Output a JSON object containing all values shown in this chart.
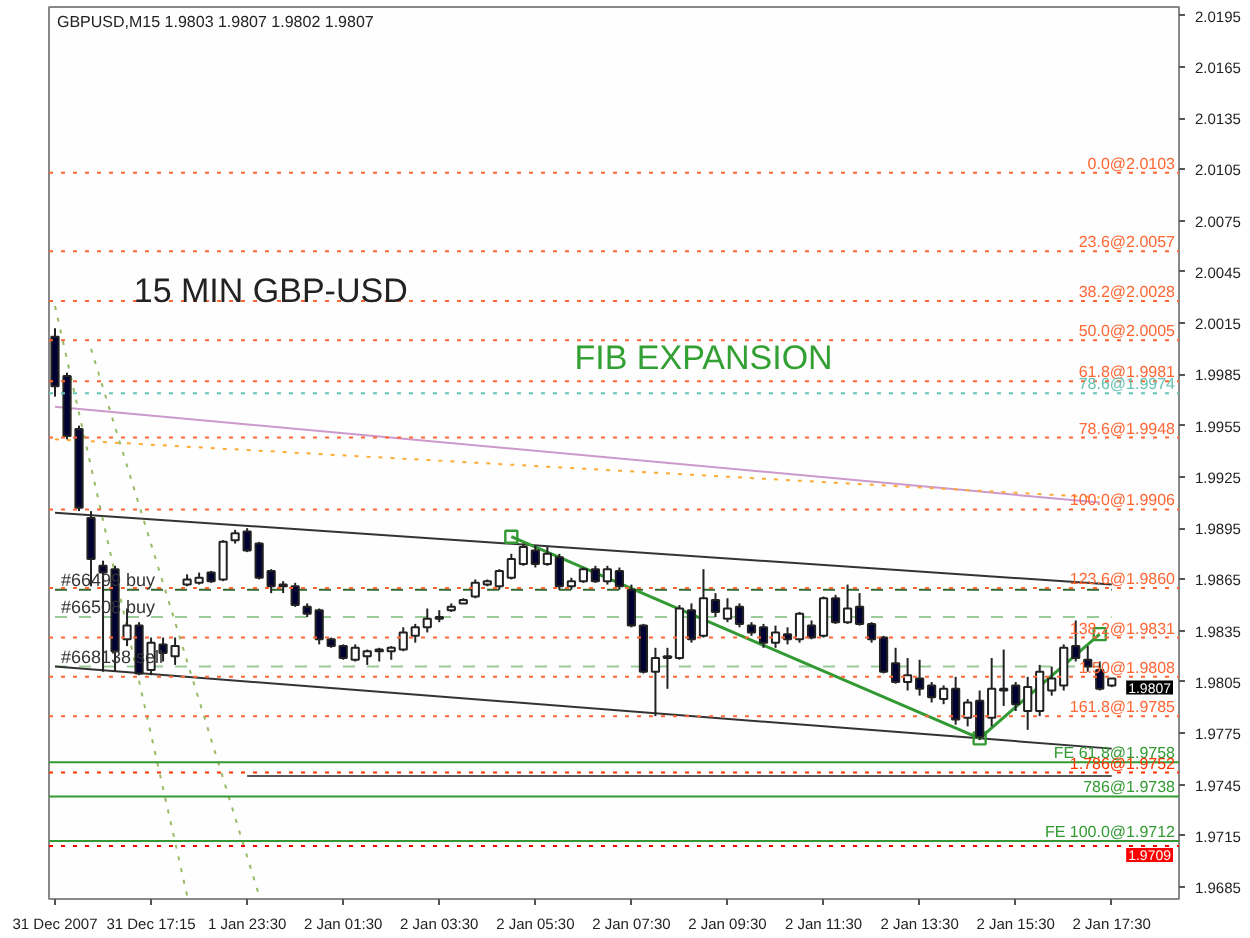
{
  "chart_data": {
    "type": "candlestick",
    "title": "GBPUSD,M15  1.9803 1.9807 1.9802 1.9807",
    "categories": [
      "31 Dec 2007",
      null,
      null,
      null,
      null,
      null,
      null,
      null,
      "31 Dec 17:15",
      null,
      null,
      null,
      null,
      null,
      null,
      null,
      "1 Jan 23:30",
      null,
      null,
      null,
      null,
      null,
      null,
      null,
      "2 Jan 01:30",
      null,
      null,
      null,
      null,
      null,
      null,
      null,
      "2 Jan 03:30",
      null,
      null,
      null,
      null,
      null,
      null,
      null,
      "2 Jan 05:30",
      null,
      null,
      null,
      null,
      null,
      null,
      null,
      "2 Jan 07:30",
      null,
      null,
      null,
      null,
      null,
      null,
      null,
      "2 Jan 09:30",
      null,
      null,
      null,
      null,
      null,
      null,
      null,
      "2 Jan 11:30",
      null,
      null,
      null,
      null,
      null,
      null,
      null,
      "2 Jan 13:30",
      null,
      null,
      null,
      null,
      null,
      null,
      null,
      "2 Jan 15:30",
      null,
      null,
      null,
      null,
      null,
      null,
      null,
      "2 Jan 17:30"
    ],
    "ohlc": [
      [
        2.0007,
        2.0012,
        1.9972,
        1.9978
      ],
      [
        1.9984,
        1.9986,
        1.9947,
        1.9949
      ],
      [
        1.9953,
        1.9955,
        1.9905,
        1.9907
      ],
      [
        1.9901,
        1.9905,
        1.9861,
        1.9877
      ],
      [
        1.9873,
        1.9876,
        1.9811,
        1.9869
      ],
      [
        1.9871,
        1.9873,
        1.9811,
        1.9823
      ],
      [
        1.983,
        1.9848,
        1.9826,
        1.9838
      ],
      [
        1.9838,
        1.984,
        1.9809,
        1.981
      ],
      [
        1.9812,
        1.9831,
        1.9809,
        1.9828
      ],
      [
        1.9827,
        1.9831,
        1.9817,
        1.9822
      ],
      [
        1.982,
        1.9831,
        1.9815,
        1.9826
      ],
      [
        1.9862,
        1.9868,
        1.9861,
        1.9865
      ],
      [
        1.9863,
        1.9869,
        1.9862,
        1.9866
      ],
      [
        1.9869,
        1.987,
        1.9863,
        1.9864
      ],
      [
        1.9865,
        1.9888,
        1.9864,
        1.9887
      ],
      [
        1.9888,
        1.9894,
        1.9886,
        1.9892
      ],
      [
        1.9893,
        1.9895,
        1.9881,
        1.9882
      ],
      [
        1.9886,
        1.9887,
        1.9865,
        1.9866
      ],
      [
        1.987,
        1.9871,
        1.9857,
        1.9861
      ],
      [
        1.9862,
        1.9864,
        1.9857,
        1.9861
      ],
      [
        1.9861,
        1.9863,
        1.9849,
        1.985
      ],
      [
        1.9849,
        1.9851,
        1.9843,
        1.9845
      ],
      [
        1.9847,
        1.9848,
        1.9827,
        1.983
      ],
      [
        1.983,
        1.9831,
        1.9825,
        1.9826
      ],
      [
        1.9826,
        1.9827,
        1.9818,
        1.9819
      ],
      [
        1.9818,
        1.9827,
        1.9817,
        1.9825
      ],
      [
        1.982,
        1.9824,
        1.9815,
        1.9823
      ],
      [
        1.9823,
        1.9825,
        1.9817,
        1.9824
      ],
      [
        1.9823,
        1.9826,
        1.9818,
        1.9825
      ],
      [
        1.9824,
        1.9837,
        1.9823,
        1.9834
      ],
      [
        1.9832,
        1.9839,
        1.9828,
        1.9837
      ],
      [
        1.9837,
        1.9848,
        1.9834,
        1.9842
      ],
      [
        1.9842,
        1.9847,
        1.984,
        1.9843
      ],
      [
        1.9847,
        1.9851,
        1.9846,
        1.9849
      ],
      [
        1.9851,
        1.9854,
        1.9851,
        1.9853
      ],
      [
        1.9855,
        1.9865,
        1.9854,
        1.9863
      ],
      [
        1.9862,
        1.9865,
        1.9861,
        1.9864
      ],
      [
        1.9861,
        1.9871,
        1.9859,
        1.987
      ],
      [
        1.9866,
        1.988,
        1.9865,
        1.9877
      ],
      [
        1.9874,
        1.9886,
        1.9873,
        1.9884
      ],
      [
        1.9882,
        1.9885,
        1.9872,
        1.9874
      ],
      [
        1.9874,
        1.9884,
        1.9873,
        1.988
      ],
      [
        1.9878,
        1.988,
        1.9859,
        1.9861
      ],
      [
        1.9861,
        1.9866,
        1.9859,
        1.9864
      ],
      [
        1.9864,
        1.9872,
        1.9863,
        1.9871
      ],
      [
        1.9871,
        1.9873,
        1.9863,
        1.9864
      ],
      [
        1.9864,
        1.9873,
        1.9862,
        1.9871
      ],
      [
        1.987,
        1.9872,
        1.9859,
        1.9861
      ],
      [
        1.9859,
        1.9862,
        1.9837,
        1.9838
      ],
      [
        1.9838,
        1.9839,
        1.981,
        1.9811
      ],
      [
        1.9811,
        1.9825,
        1.9785,
        1.9819
      ],
      [
        1.9819,
        1.9825,
        1.9801,
        1.982
      ],
      [
        1.9819,
        1.985,
        1.9818,
        1.9848
      ],
      [
        1.9847,
        1.9851,
        1.9828,
        1.983
      ],
      [
        1.9832,
        1.9871,
        1.9831,
        1.9854
      ],
      [
        1.9853,
        1.9857,
        1.9843,
        1.9846
      ],
      [
        1.9842,
        1.9854,
        1.984,
        1.9848
      ],
      [
        1.9849,
        1.9851,
        1.9837,
        1.9839
      ],
      [
        1.9838,
        1.984,
        1.9832,
        1.9834
      ],
      [
        1.9837,
        1.9839,
        1.9825,
        1.9828
      ],
      [
        1.9828,
        1.9838,
        1.9825,
        1.9834
      ],
      [
        1.9833,
        1.9837,
        1.9827,
        1.983
      ],
      [
        1.983,
        1.9846,
        1.9828,
        1.9845
      ],
      [
        1.9838,
        1.9841,
        1.983,
        1.9831
      ],
      [
        1.9832,
        1.9855,
        1.9831,
        1.9854
      ],
      [
        1.9854,
        1.9856,
        1.9839,
        1.984
      ],
      [
        1.984,
        1.9862,
        1.9839,
        1.9848
      ],
      [
        1.9849,
        1.9857,
        1.9838,
        1.9839
      ],
      [
        1.9839,
        1.984,
        1.9828,
        1.983
      ],
      [
        1.9831,
        1.9832,
        1.981,
        1.9811
      ],
      [
        1.9816,
        1.9825,
        1.9804,
        1.9805
      ],
      [
        1.9805,
        1.9819,
        1.98,
        1.9809
      ],
      [
        1.9807,
        1.9818,
        1.9797,
        1.9801
      ],
      [
        1.9803,
        1.9805,
        1.9793,
        1.9796
      ],
      [
        1.9795,
        1.9803,
        1.9792,
        1.9801
      ],
      [
        1.9801,
        1.9808,
        1.978,
        1.9783
      ],
      [
        1.9784,
        1.9795,
        1.9779,
        1.9793
      ],
      [
        1.9794,
        1.98,
        1.9771,
        1.9773
      ],
      [
        1.9784,
        1.9819,
        1.9779,
        1.9801
      ],
      [
        1.98,
        1.9824,
        1.9791,
        1.9801
      ],
      [
        1.9803,
        1.9805,
        1.9788,
        1.9792
      ],
      [
        1.9788,
        1.9808,
        1.9777,
        1.9802
      ],
      [
        1.9788,
        1.9815,
        1.9785,
        1.9811
      ],
      [
        1.98,
        1.9814,
        1.9797,
        1.9807
      ],
      [
        1.9803,
        1.9827,
        1.98,
        1.9825
      ],
      [
        1.9826,
        1.9841,
        1.9817,
        1.9819
      ],
      [
        1.9818,
        1.9826,
        1.9811,
        1.9814
      ],
      [
        1.9812,
        1.9817,
        1.98,
        1.9801
      ],
      [
        1.9803,
        1.9807,
        1.9802,
        1.9807
      ]
    ],
    "ylim": [
      1.9678,
      2.02
    ],
    "yticks": [
      2.0195,
      2.0165,
      2.0135,
      2.0105,
      2.0075,
      2.0045,
      2.0015,
      1.9985,
      1.9955,
      1.9925,
      1.9895,
      1.9865,
      1.9835,
      1.9805,
      1.9775,
      1.9745,
      1.9715,
      1.9685
    ],
    "ref_lines": [
      {
        "axis": "y",
        "value": 2.0103,
        "label": "0.0@2.0103",
        "color": "#ff6633",
        "line_style": "dotted"
      },
      {
        "axis": "y",
        "value": 2.0057,
        "label": "23.6@2.0057",
        "color": "#ff6633",
        "line_style": "dotted"
      },
      {
        "axis": "y",
        "value": 2.0028,
        "label": "38.2@2.0028",
        "color": "#ff6633",
        "line_style": "dotted"
      },
      {
        "axis": "y",
        "value": 2.0005,
        "label": "50.0@2.0005",
        "color": "#ff6633",
        "line_style": "dotted"
      },
      {
        "axis": "y",
        "value": 1.9981,
        "label": "61.8@1.9981",
        "color": "#ff6633",
        "line_style": "dotted"
      },
      {
        "axis": "y",
        "value": 1.9974,
        "label": "78.6@1.9974",
        "color": "#66c2b4",
        "line_style": "dotted"
      },
      {
        "axis": "y",
        "value": 1.9948,
        "label": "78.6@1.9948",
        "color": "#ff6633",
        "line_style": "dotted"
      },
      {
        "axis": "y",
        "value": 1.9906,
        "label": "100.0@1.9906",
        "color": "#ff6633",
        "line_style": "dotted"
      },
      {
        "axis": "y",
        "value": 1.986,
        "label": "123.6@1.9860",
        "color": "#ff6633",
        "line_style": "dotted"
      },
      {
        "axis": "y",
        "value": 1.9831,
        "label": "138.2@1.9831",
        "color": "#ff6633",
        "line_style": "dotted"
      },
      {
        "axis": "y",
        "value": 1.9808,
        "label": "1.50@1.9808",
        "color": "#ff6633",
        "line_style": "dotted"
      },
      {
        "axis": "y",
        "value": 1.9785,
        "label": "161.8@1.9785",
        "color": "#ff6633",
        "line_style": "dotted"
      },
      {
        "axis": "y",
        "value": 1.9758,
        "label": "FE 61.8@1.9758",
        "color": "#339933",
        "line_style": "solid"
      },
      {
        "axis": "y",
        "value": 1.9752,
        "label": "1.786@1.9752",
        "color": "#ff3300",
        "line_style": "dotted"
      },
      {
        "axis": "y",
        "value": 1.9738,
        "label": "786@1.9738",
        "color": "#339933",
        "line_style": "solid"
      },
      {
        "axis": "y",
        "value": 1.9712,
        "label": "FE 100.0@1.9712",
        "color": "#339933",
        "line_style": "solid"
      },
      {
        "axis": "y",
        "value": 1.9709,
        "label": null,
        "color": "#ff0000",
        "line_style": "dotted"
      }
    ],
    "series": [
      {
        "name": "#66499 buy",
        "type": "line",
        "values": [
          1.9859,
          null,
          null,
          null,
          null,
          null,
          null,
          null,
          null,
          null,
          null,
          null,
          null,
          null,
          null,
          null,
          null,
          null,
          null,
          null,
          null,
          null,
          null,
          null,
          null,
          null,
          null,
          null,
          null,
          null,
          null,
          null,
          null,
          null,
          null,
          null,
          null,
          null,
          null,
          null,
          null,
          null,
          null,
          null,
          null,
          null,
          null,
          null,
          null,
          null,
          null,
          null,
          null,
          null,
          null,
          null,
          null,
          null,
          null,
          null,
          null,
          null,
          null,
          null,
          null,
          null,
          null,
          null,
          null,
          null,
          null,
          null,
          null,
          null,
          null,
          null,
          null,
          null,
          null,
          null,
          null,
          null,
          null,
          null,
          null,
          null,
          null,
          null,
          1.9859
        ],
        "color": "#2f6b2f",
        "line_style": "dashed"
      },
      {
        "name": "#66508 buy",
        "type": "line",
        "values": [
          1.9843,
          null,
          null,
          null,
          null,
          null,
          null,
          null,
          null,
          null,
          null,
          null,
          null,
          null,
          null,
          null,
          null,
          null,
          null,
          null,
          null,
          null,
          null,
          null,
          null,
          null,
          null,
          null,
          null,
          null,
          null,
          null,
          null,
          null,
          null,
          null,
          null,
          null,
          null,
          null,
          null,
          null,
          null,
          null,
          null,
          null,
          null,
          null,
          null,
          null,
          null,
          null,
          null,
          null,
          null,
          null,
          null,
          null,
          null,
          null,
          null,
          null,
          null,
          null,
          null,
          null,
          null,
          null,
          null,
          null,
          null,
          null,
          null,
          null,
          null,
          null,
          null,
          null,
          null,
          null,
          null,
          null,
          null,
          null,
          null,
          null,
          null,
          null,
          1.9843
        ],
        "color": "#99cc99",
        "line_style": "dashed"
      },
      {
        "name": "#668138 sell",
        "type": "line",
        "values": [
          1.9814,
          null,
          null,
          null,
          null,
          null,
          null,
          null,
          null,
          null,
          null,
          null,
          null,
          null,
          null,
          null,
          null,
          null,
          null,
          null,
          null,
          null,
          null,
          null,
          null,
          null,
          null,
          null,
          null,
          null,
          null,
          null,
          null,
          null,
          null,
          null,
          null,
          null,
          null,
          null,
          null,
          null,
          null,
          null,
          null,
          null,
          null,
          null,
          null,
          null,
          null,
          null,
          null,
          null,
          null,
          null,
          null,
          null,
          null,
          null,
          null,
          null,
          null,
          null,
          null,
          null,
          null,
          null,
          null,
          null,
          null,
          null,
          null,
          null,
          null,
          null,
          null,
          null,
          null,
          null,
          null,
          null,
          null,
          null,
          null,
          null,
          null,
          null,
          1.9814
        ],
        "color": "#99cc99",
        "line_style": "dashed"
      },
      {
        "type": "line",
        "values": [
          1.9904,
          null,
          null,
          null,
          null,
          null,
          null,
          null,
          null,
          null,
          null,
          null,
          null,
          null,
          null,
          null,
          null,
          null,
          null,
          null,
          null,
          null,
          null,
          null,
          null,
          null,
          null,
          null,
          null,
          null,
          null,
          null,
          null,
          null,
          null,
          null,
          null,
          null,
          null,
          null,
          null,
          null,
          null,
          null,
          null,
          null,
          null,
          null,
          null,
          null,
          null,
          null,
          null,
          null,
          null,
          null,
          null,
          null,
          null,
          null,
          null,
          null,
          null,
          null,
          null,
          null,
          null,
          null,
          null,
          null,
          null,
          null,
          null,
          null,
          null,
          null,
          null,
          null,
          null,
          null,
          null,
          null,
          null,
          null,
          null,
          null,
          null,
          null,
          1.9862
        ],
        "color": "#333333",
        "line_style": "solid"
      },
      {
        "type": "line",
        "values": [
          1.9814,
          null,
          null,
          null,
          null,
          null,
          null,
          null,
          null,
          null,
          null,
          null,
          null,
          null,
          null,
          null,
          null,
          null,
          null,
          null,
          null,
          null,
          null,
          null,
          null,
          null,
          null,
          null,
          null,
          null,
          null,
          null,
          null,
          null,
          null,
          null,
          null,
          null,
          null,
          null,
          null,
          null,
          null,
          null,
          null,
          null,
          null,
          null,
          null,
          null,
          null,
          null,
          null,
          null,
          null,
          null,
          null,
          null,
          null,
          null,
          null,
          null,
          null,
          null,
          null,
          null,
          null,
          null,
          null,
          null,
          null,
          null,
          null,
          null,
          null,
          null,
          null,
          null,
          null,
          null,
          null,
          null,
          null,
          null,
          null,
          null,
          null,
          null,
          1.9766
        ],
        "color": "#333333",
        "line_style": "solid"
      },
      {
        "type": "line",
        "values": [
          1.9966,
          null,
          null,
          null,
          null,
          null,
          null,
          null,
          null,
          null,
          null,
          null,
          null,
          null,
          null,
          null,
          null,
          null,
          null,
          null,
          null,
          null,
          null,
          null,
          null,
          null,
          null,
          null,
          null,
          null,
          null,
          null,
          null,
          null,
          null,
          null,
          null,
          null,
          null,
          null,
          null,
          null,
          null,
          null,
          null,
          null,
          null,
          null,
          null,
          null,
          null,
          null,
          null,
          null,
          null,
          null,
          null,
          null,
          null,
          null,
          null,
          null,
          null,
          null,
          null,
          null,
          null,
          null,
          null,
          null,
          null,
          null,
          null,
          null,
          null,
          null,
          null,
          null,
          null,
          null,
          null,
          null,
          null,
          null,
          null,
          null,
          null,
          1.991,
          null
        ],
        "color": "#cc99cc",
        "line_style": "solid"
      },
      {
        "type": "line",
        "values": [
          1.9947,
          null,
          null,
          null,
          null,
          null,
          null,
          null,
          null,
          null,
          null,
          null,
          null,
          null,
          null,
          null,
          null,
          null,
          null,
          null,
          null,
          null,
          null,
          null,
          null,
          null,
          null,
          null,
          null,
          null,
          null,
          null,
          null,
          null,
          null,
          null,
          null,
          null,
          null,
          null,
          null,
          null,
          null,
          null,
          null,
          null,
          null,
          null,
          null,
          null,
          null,
          null,
          null,
          null,
          null,
          null,
          null,
          null,
          null,
          null,
          null,
          null,
          null,
          null,
          null,
          null,
          null,
          null,
          null,
          null,
          null,
          null,
          null,
          null,
          null,
          null,
          null,
          null,
          null,
          null,
          null,
          null,
          null,
          null,
          null,
          null,
          null,
          1.9913,
          null
        ],
        "color": "#ffaa33",
        "line_style": "dotted"
      },
      {
        "type": "line",
        "values": [
          null,
          null,
          null,
          null,
          null,
          null,
          null,
          null,
          null,
          null,
          null,
          null,
          null,
          null,
          null,
          null,
          1.975,
          null,
          null,
          null,
          null,
          null,
          null,
          null,
          null,
          null,
          null,
          null,
          null,
          null,
          null,
          null,
          null,
          null,
          null,
          null,
          null,
          null,
          null,
          null,
          null,
          null,
          null,
          null,
          null,
          null,
          null,
          null,
          null,
          null,
          null,
          null,
          null,
          null,
          null,
          null,
          null,
          null,
          null,
          null,
          null,
          null,
          null,
          null,
          null,
          null,
          null,
          null,
          null,
          null,
          null,
          null,
          null,
          null,
          null,
          null,
          null,
          null,
          null,
          null,
          null,
          null,
          null,
          null,
          null,
          null,
          null,
          null,
          1.975
        ],
        "color": "#555555",
        "line_style": "solid"
      },
      {
        "type": "line",
        "values": [
          2.0025,
          null,
          null,
          null,
          null,
          null,
          null,
          null,
          null,
          null,
          null,
          1.968,
          null,
          null,
          null,
          null,
          null,
          null,
          null,
          null,
          null,
          null,
          null,
          null,
          null,
          null,
          null,
          null,
          null,
          null,
          null,
          null,
          null,
          null,
          null,
          null,
          null,
          null,
          null,
          null,
          null,
          null,
          null,
          null,
          null,
          null,
          null,
          null,
          null,
          null,
          null,
          null,
          null,
          null,
          null,
          null,
          null,
          null,
          null,
          null,
          null,
          null,
          null,
          null,
          null,
          null,
          null,
          null,
          null,
          null,
          null,
          null,
          null,
          null,
          null,
          null,
          null,
          null,
          null,
          null,
          null,
          null,
          null,
          null,
          null,
          null,
          null,
          null,
          null
        ],
        "color": "#99bb66",
        "line_style": "dotted"
      },
      {
        "type": "line",
        "values": [
          null,
          null,
          null,
          2.0,
          null,
          null,
          null,
          null,
          null,
          null,
          null,
          null,
          null,
          null,
          null,
          null,
          null,
          1.968,
          null,
          null,
          null,
          null,
          null,
          null,
          null,
          null,
          null,
          null,
          null,
          null,
          null,
          null,
          null,
          null,
          null,
          null,
          null,
          null,
          null,
          null,
          null,
          null,
          null,
          null,
          null,
          null,
          null,
          null,
          null,
          null,
          null,
          null,
          null,
          null,
          null,
          null,
          null,
          null,
          null,
          null,
          null,
          null,
          null,
          null,
          null,
          null,
          null,
          null,
          null,
          null,
          null,
          null,
          null,
          null,
          null,
          null,
          null,
          null,
          null,
          null,
          null,
          null,
          null,
          null,
          null,
          null,
          null,
          null,
          null
        ],
        "color": "#99bb66",
        "line_style": "dotted"
      },
      {
        "type": "line",
        "values": [
          null,
          null,
          null,
          null,
          null,
          null,
          null,
          null,
          null,
          null,
          null,
          null,
          null,
          null,
          null,
          null,
          null,
          null,
          null,
          null,
          null,
          null,
          null,
          null,
          null,
          null,
          null,
          null,
          null,
          null,
          null,
          null,
          null,
          null,
          null,
          null,
          null,
          null,
          1.989,
          null,
          null,
          null,
          null,
          null,
          null,
          null,
          null,
          null,
          null,
          null,
          null,
          null,
          null,
          null,
          null,
          null,
          null,
          null,
          null,
          null,
          null,
          null,
          null,
          null,
          null,
          null,
          null,
          null,
          null,
          null,
          null,
          null,
          null,
          null,
          null,
          null,
          null,
          1.9772,
          null,
          null,
          null,
          null,
          null,
          null,
          null,
          null,
          null,
          1.9833,
          null
        ],
        "color": "#339933",
        "line_style": "solid",
        "marker": "square"
      }
    ],
    "annotations": [
      "15 MIN GBP-USD",
      "FIB EXPANSION",
      {
        "text": "1.9807",
        "y": 1.9807
      },
      {
        "text": "1.9709",
        "y": 1.9709
      }
    ]
  }
}
